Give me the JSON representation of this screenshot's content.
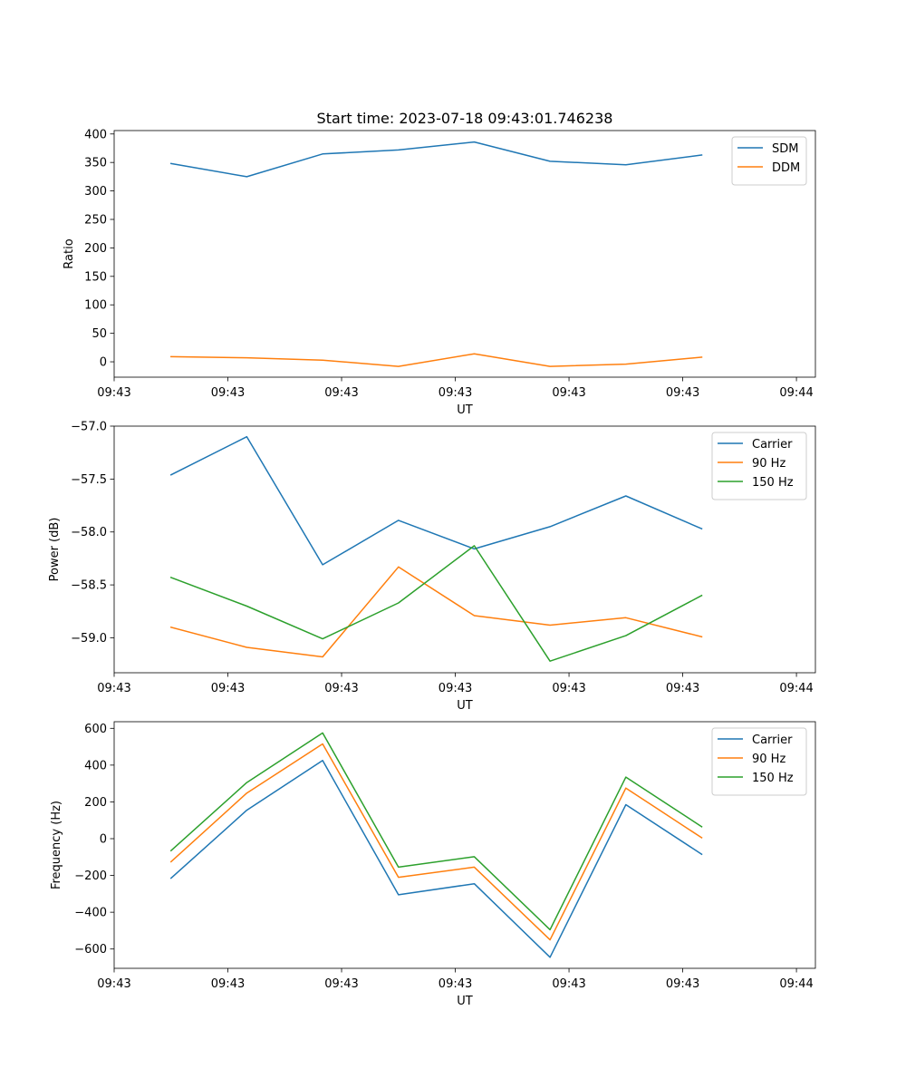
{
  "chart_data": [
    {
      "type": "line",
      "title": "Start time: 2023-07-18 09:43:01.746238",
      "xlabel": "UT",
      "ylabel": "Ratio",
      "xlim": [
        0,
        9.25
      ],
      "ylim": [
        -27,
        406
      ],
      "x": [
        0.75,
        1.75,
        2.75,
        3.75,
        4.75,
        5.75,
        6.75,
        7.75
      ],
      "x_ticks": [
        0,
        1.5,
        3.0,
        4.5,
        6.0,
        7.5,
        9.0
      ],
      "x_tick_labels": [
        "09:43",
        "09:43",
        "09:43",
        "09:43",
        "09:43",
        "09:43",
        "09:44"
      ],
      "y_ticks": [
        0,
        50,
        100,
        150,
        200,
        250,
        300,
        350,
        400
      ],
      "y_tick_labels": [
        "0",
        "50",
        "100",
        "150",
        "200",
        "250",
        "300",
        "350",
        "400"
      ],
      "legend_position": "top-right",
      "series": [
        {
          "name": "SDM",
          "color": "#1f77b4",
          "values": [
            348,
            325,
            365,
            372,
            386,
            352,
            346,
            363
          ]
        },
        {
          "name": "DDM",
          "color": "#ff7f0e",
          "values": [
            9,
            7,
            3,
            -8,
            14,
            -8,
            -4,
            8
          ]
        }
      ]
    },
    {
      "type": "line",
      "title": "",
      "xlabel": "UT",
      "ylabel": "Power (dB)",
      "xlim": [
        0,
        9.25
      ],
      "ylim": [
        -59.33,
        -57.0
      ],
      "x": [
        0.75,
        1.75,
        2.75,
        3.75,
        4.75,
        5.75,
        6.75,
        7.75
      ],
      "x_ticks": [
        0,
        1.5,
        3.0,
        4.5,
        6.0,
        7.5,
        9.0
      ],
      "x_tick_labels": [
        "09:43",
        "09:43",
        "09:43",
        "09:43",
        "09:43",
        "09:43",
        "09:44"
      ],
      "y_ticks": [
        -59.0,
        -58.5,
        -58.0,
        -57.5,
        -57.0
      ],
      "y_tick_labels": [
        "−59.0",
        "−58.5",
        "−58.0",
        "−57.5",
        "−57.0"
      ],
      "legend_position": "top-right",
      "series": [
        {
          "name": "Carrier",
          "color": "#1f77b4",
          "values": [
            -57.46,
            -57.1,
            -58.31,
            -57.89,
            -58.16,
            -57.95,
            -57.66,
            -57.97
          ]
        },
        {
          "name": "90 Hz",
          "color": "#ff7f0e",
          "values": [
            -58.9,
            -59.09,
            -59.18,
            -58.33,
            -58.79,
            -58.88,
            -58.81,
            -58.99
          ]
        },
        {
          "name": "150 Hz",
          "color": "#2ca02c",
          "values": [
            -58.43,
            -58.7,
            -59.01,
            -58.67,
            -58.13,
            -59.22,
            -58.98,
            -58.6
          ]
        }
      ]
    },
    {
      "type": "line",
      "title": "",
      "xlabel": "UT",
      "ylabel": "Frequency (Hz)",
      "xlim": [
        0,
        9.25
      ],
      "ylim": [
        -705,
        636
      ],
      "x": [
        0.75,
        1.75,
        2.75,
        3.75,
        4.75,
        5.75,
        6.75,
        7.75
      ],
      "x_ticks": [
        0,
        1.5,
        3.0,
        4.5,
        6.0,
        7.5,
        9.0
      ],
      "x_tick_labels": [
        "09:43",
        "09:43",
        "09:43",
        "09:43",
        "09:43",
        "09:43",
        "09:44"
      ],
      "y_ticks": [
        -600,
        -400,
        -200,
        0,
        200,
        400,
        600
      ],
      "y_tick_labels": [
        "−600",
        "−400",
        "−200",
        "0",
        "200",
        "400",
        "600"
      ],
      "legend_position": "top-right",
      "series": [
        {
          "name": "Carrier",
          "color": "#1f77b4",
          "values": [
            -215,
            155,
            425,
            -305,
            -245,
            -645,
            185,
            -85
          ]
        },
        {
          "name": "90 Hz",
          "color": "#ff7f0e",
          "values": [
            -125,
            248,
            515,
            -210,
            -155,
            -550,
            275,
            5
          ]
        },
        {
          "name": "150 Hz",
          "color": "#2ca02c",
          "values": [
            -65,
            305,
            575,
            -155,
            -98,
            -495,
            335,
            65
          ]
        }
      ]
    }
  ]
}
